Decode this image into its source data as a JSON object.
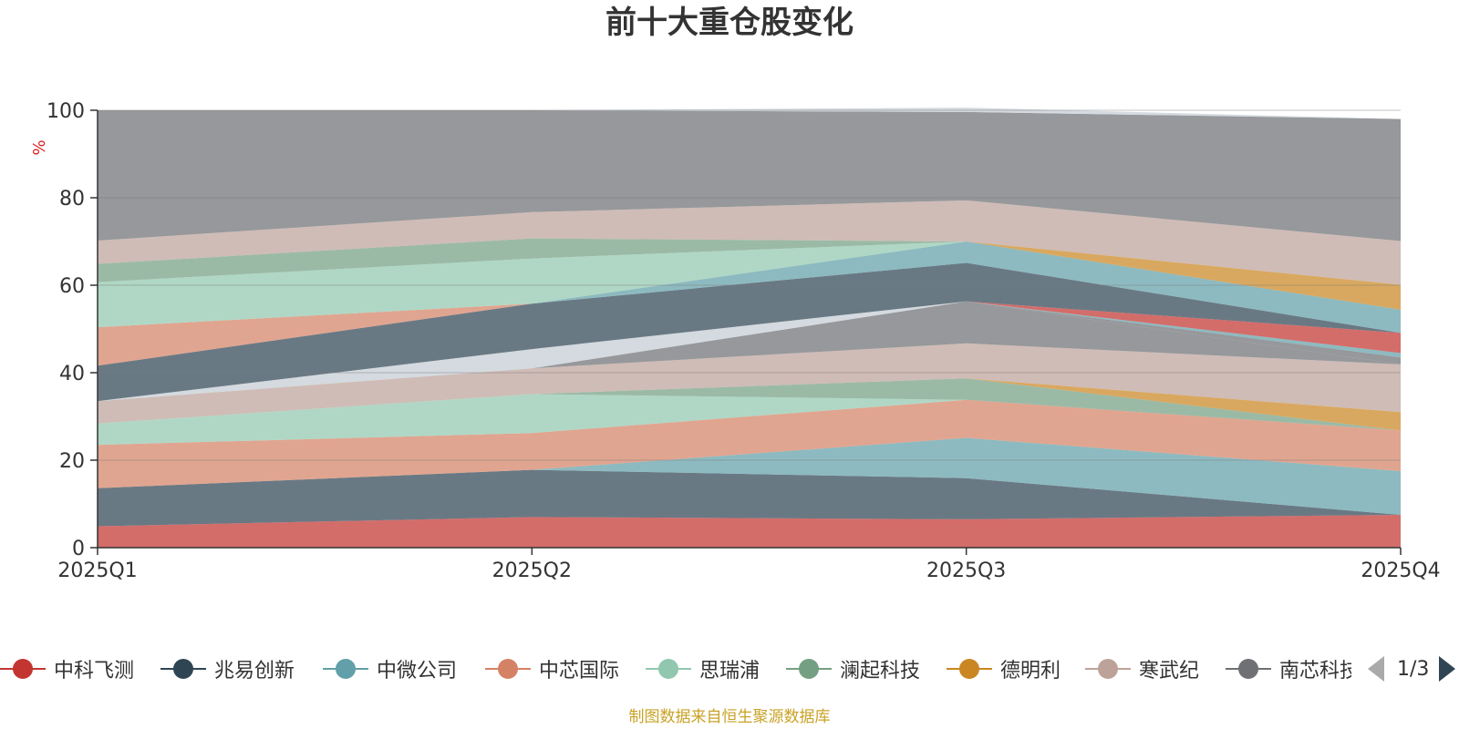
{
  "title": "前十大重仓股变化",
  "source_note": "制图数据来自恒生聚源数据库",
  "colors": {
    "background": "#ffffff",
    "axis": "#333333",
    "grid": "#7a7a7a",
    "unit": "#e02020",
    "source": "#c9a227"
  },
  "pager": {
    "text": "1/3"
  },
  "legend": [
    {
      "name": "中科飞测",
      "color": "#c23531"
    },
    {
      "name": "兆易创新",
      "color": "#2f4554"
    },
    {
      "name": "中微公司",
      "color": "#61a0a8"
    },
    {
      "name": "中芯国际",
      "color": "#d48265"
    },
    {
      "name": "思瑞浦",
      "color": "#91c7ae"
    },
    {
      "name": "澜起科技",
      "color": "#749f83"
    },
    {
      "name": "德明利",
      "color": "#ca8622"
    },
    {
      "name": "寒武纪",
      "color": "#bda29a"
    },
    {
      "name": "南芯科技",
      "color": "#6e7074"
    }
  ],
  "chart_data": {
    "type": "area",
    "stacked": true,
    "ylabel": "%",
    "ylim": [
      0,
      100
    ],
    "yticks": [
      0,
      20,
      40,
      60,
      80,
      100
    ],
    "categories": [
      "2025Q1",
      "2025Q2",
      "2025Q3",
      "2025Q4"
    ],
    "grid": true,
    "series": [
      {
        "color": "#c23531",
        "values": [
          4.9,
          7.0,
          6.5,
          7.5
        ]
      },
      {
        "color": "#2f4554",
        "values": [
          8.7,
          10.8,
          9.4,
          null
        ]
      },
      {
        "color": "#61a0a8",
        "values": [
          null,
          null,
          9.2,
          10.0
        ]
      },
      {
        "color": "#d48265",
        "values": [
          9.9,
          8.4,
          8.7,
          9.3
        ]
      },
      {
        "color": "#91c7ae",
        "values": [
          4.9,
          8.9,
          null,
          null
        ]
      },
      {
        "color": "#749f83",
        "values": [
          null,
          null,
          4.9,
          null
        ]
      },
      {
        "color": "#ca8622",
        "values": [
          null,
          null,
          null,
          4.2
        ]
      },
      {
        "color": "#bda29a",
        "values": [
          5.1,
          5.9,
          8.0,
          10.9
        ]
      },
      {
        "color": "#6e7074",
        "values": [
          null,
          null,
          9.6,
          null
        ]
      },
      {
        "color": "#c4ccd3",
        "values": [
          null,
          4.4,
          null,
          null
        ]
      },
      {
        "color": "#6e7074",
        "values": [
          null,
          null,
          null,
          1.6
        ]
      },
      {
        "color": "#61a0a8",
        "values": [
          null,
          null,
          null,
          1.0
        ]
      },
      {
        "color": "#c23531",
        "values": [
          null,
          null,
          null,
          4.6
        ]
      },
      {
        "color": "#2f4554",
        "values": [
          8.1,
          10.4,
          8.8,
          null
        ]
      },
      {
        "color": "#61a0a8",
        "values": [
          null,
          null,
          4.9,
          5.3
        ]
      },
      {
        "color": "#d48265",
        "values": [
          8.8,
          null,
          null,
          null
        ]
      },
      {
        "color": "#ca8622",
        "values": [
          null,
          null,
          null,
          5.7
        ]
      },
      {
        "color": "#91c7ae",
        "values": [
          10.3,
          10.3,
          null,
          null
        ]
      },
      {
        "color": "#749f83",
        "values": [
          4.2,
          4.6,
          null,
          null
        ]
      },
      {
        "color": "#bda29a",
        "values": [
          5.3,
          6.0,
          9.4,
          10.0
        ]
      },
      {
        "color": "#6e7074",
        "values": [
          29.8,
          23.3,
          20.2,
          27.9
        ]
      },
      {
        "color": "#c4ccd3",
        "values": [
          null,
          null,
          1.0,
          null
        ]
      }
    ]
  }
}
